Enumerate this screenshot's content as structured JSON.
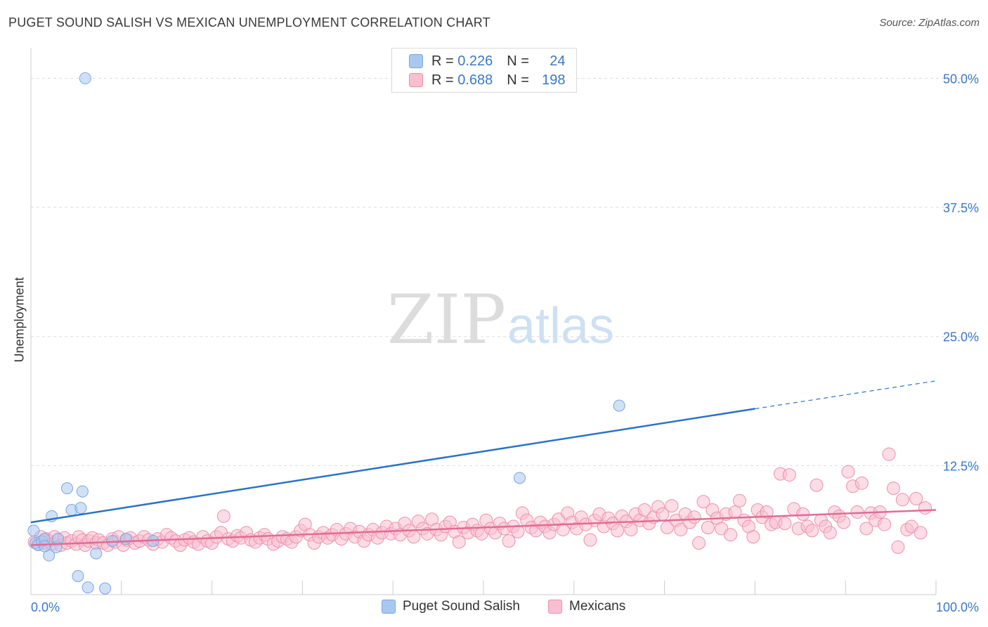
{
  "title": "PUGET SOUND SALISH VS MEXICAN UNEMPLOYMENT CORRELATION CHART",
  "source": "Source: ZipAtlas.com",
  "legend": [
    {
      "r_label": "R =",
      "r_value": "0.226",
      "n_label": "N =",
      "n_value": "24",
      "color": "#a9c8f0",
      "border": "#7aa7e0"
    },
    {
      "r_label": "R =",
      "r_value": "0.688",
      "n_label": "N =",
      "n_value": "198",
      "color": "#f9bfd0",
      "border": "#ec90ad"
    }
  ],
  "bottom_legend": [
    "Puget Sound Salish",
    "Mexicans"
  ],
  "watermark": {
    "zip": "ZIP",
    "atlas": "atlas"
  },
  "chart_data": {
    "type": "scatter",
    "title": "PUGET SOUND SALISH VS MEXICAN UNEMPLOYMENT CORRELATION CHART",
    "xlabel": "",
    "ylabel": "Unemployment",
    "xlim": [
      0,
      100
    ],
    "ylim": [
      0,
      52
    ],
    "x_tick_labels": [
      "0.0%",
      "100.0%"
    ],
    "y_ticks": [
      12.5,
      25.0,
      37.5,
      50.0
    ],
    "y_tick_labels": [
      "12.5%",
      "25.0%",
      "37.5%",
      "50.0%"
    ],
    "grid": true,
    "series": [
      {
        "name": "Puget Sound Salish",
        "color": "#7aa7e0",
        "fill": "#a9c8f0",
        "line_color": "#2b72c9",
        "trend": {
          "x0": 0,
          "y0": 7.0,
          "x1": 80,
          "y1": 18.0,
          "dash_to_x": 100,
          "dash_to_y": 20.7
        },
        "points": [
          [
            0.3,
            6.2
          ],
          [
            0.5,
            5.0
          ],
          [
            0.8,
            4.8
          ],
          [
            1.2,
            5.2
          ],
          [
            1.5,
            5.4
          ],
          [
            2.0,
            3.8
          ],
          [
            2.3,
            7.6
          ],
          [
            2.8,
            4.6
          ],
          [
            3.0,
            5.4
          ],
          [
            4.0,
            10.3
          ],
          [
            4.5,
            8.2
          ],
          [
            5.5,
            8.4
          ],
          [
            5.7,
            10.0
          ],
          [
            5.2,
            1.8
          ],
          [
            6.3,
            0.7
          ],
          [
            7.2,
            4.0
          ],
          [
            8.2,
            0.6
          ],
          [
            9.0,
            5.2
          ],
          [
            10.5,
            5.4
          ],
          [
            13.5,
            5.2
          ],
          [
            6.0,
            50.0
          ],
          [
            54.0,
            11.3
          ],
          [
            65.0,
            18.3
          ],
          [
            1.5,
            4.7
          ]
        ]
      },
      {
        "name": "Mexicans",
        "color": "#ec90ad",
        "fill": "#f9bfd0",
        "line_color": "#e06c96",
        "trend": {
          "x0": 0,
          "y0": 4.8,
          "x1": 100,
          "y1": 8.2
        },
        "points": [
          [
            0.4,
            5.1
          ],
          [
            0.8,
            4.9
          ],
          [
            1.1,
            5.6
          ],
          [
            1.4,
            5.0
          ],
          [
            1.7,
            5.4
          ],
          [
            2.0,
            5.2
          ],
          [
            2.3,
            4.9
          ],
          [
            2.6,
            5.6
          ],
          [
            3.0,
            5.3
          ],
          [
            3.3,
            4.8
          ],
          [
            3.7,
            5.5
          ],
          [
            4.0,
            5.0
          ],
          [
            4.5,
            5.2
          ],
          [
            5.0,
            4.9
          ],
          [
            5.3,
            5.6
          ],
          [
            5.7,
            5.3
          ],
          [
            6.0,
            4.8
          ],
          [
            6.4,
            5.2
          ],
          [
            6.8,
            5.5
          ],
          [
            7.2,
            5.0
          ],
          [
            7.5,
            5.3
          ],
          [
            8.0,
            5.0
          ],
          [
            8.5,
            4.8
          ],
          [
            9.0,
            5.4
          ],
          [
            9.3,
            5.1
          ],
          [
            9.7,
            5.6
          ],
          [
            10.2,
            4.8
          ],
          [
            10.6,
            5.3
          ],
          [
            11.0,
            5.5
          ],
          [
            11.5,
            5.0
          ],
          [
            12.0,
            5.2
          ],
          [
            12.5,
            5.6
          ],
          [
            13.0,
            5.3
          ],
          [
            13.5,
            4.9
          ],
          [
            14.0,
            5.4
          ],
          [
            14.5,
            5.1
          ],
          [
            15.0,
            5.8
          ],
          [
            15.5,
            5.5
          ],
          [
            16.0,
            5.2
          ],
          [
            16.5,
            4.8
          ],
          [
            17.0,
            5.3
          ],
          [
            17.5,
            5.5
          ],
          [
            18.0,
            5.1
          ],
          [
            18.5,
            4.9
          ],
          [
            19.0,
            5.6
          ],
          [
            19.5,
            5.2
          ],
          [
            20.0,
            5.0
          ],
          [
            20.5,
            5.6
          ],
          [
            21.0,
            6.0
          ],
          [
            21.3,
            7.6
          ],
          [
            21.8,
            5.4
          ],
          [
            22.3,
            5.2
          ],
          [
            22.8,
            5.7
          ],
          [
            23.2,
            5.5
          ],
          [
            23.8,
            6.0
          ],
          [
            24.3,
            5.3
          ],
          [
            24.8,
            5.1
          ],
          [
            25.3,
            5.5
          ],
          [
            25.8,
            5.8
          ],
          [
            26.2,
            5.4
          ],
          [
            26.8,
            4.9
          ],
          [
            27.3,
            5.2
          ],
          [
            27.8,
            5.6
          ],
          [
            28.3,
            5.4
          ],
          [
            28.8,
            5.1
          ],
          [
            29.3,
            5.6
          ],
          [
            29.8,
            6.2
          ],
          [
            30.3,
            6.8
          ],
          [
            30.8,
            5.8
          ],
          [
            31.3,
            5.0
          ],
          [
            31.8,
            5.6
          ],
          [
            32.3,
            6.0
          ],
          [
            32.8,
            5.5
          ],
          [
            33.3,
            5.8
          ],
          [
            33.8,
            6.3
          ],
          [
            34.3,
            5.4
          ],
          [
            34.8,
            5.9
          ],
          [
            35.3,
            6.4
          ],
          [
            35.8,
            5.6
          ],
          [
            36.3,
            6.1
          ],
          [
            36.8,
            5.2
          ],
          [
            37.3,
            5.8
          ],
          [
            37.8,
            6.3
          ],
          [
            38.3,
            5.5
          ],
          [
            38.8,
            6.0
          ],
          [
            39.3,
            6.6
          ],
          [
            39.8,
            5.9
          ],
          [
            40.3,
            6.4
          ],
          [
            40.8,
            5.8
          ],
          [
            41.3,
            6.9
          ],
          [
            41.8,
            6.2
          ],
          [
            42.3,
            5.6
          ],
          [
            42.8,
            7.1
          ],
          [
            43.3,
            6.4
          ],
          [
            43.8,
            5.9
          ],
          [
            44.3,
            7.3
          ],
          [
            44.8,
            6.3
          ],
          [
            45.3,
            5.8
          ],
          [
            45.8,
            6.6
          ],
          [
            46.3,
            7.0
          ],
          [
            46.8,
            6.1
          ],
          [
            47.3,
            5.1
          ],
          [
            47.8,
            6.5
          ],
          [
            48.3,
            6.0
          ],
          [
            48.8,
            6.8
          ],
          [
            49.3,
            6.2
          ],
          [
            49.8,
            5.9
          ],
          [
            50.3,
            7.2
          ],
          [
            50.8,
            6.4
          ],
          [
            51.3,
            6.0
          ],
          [
            51.8,
            6.9
          ],
          [
            52.3,
            6.4
          ],
          [
            52.8,
            5.2
          ],
          [
            53.3,
            6.6
          ],
          [
            53.8,
            6.1
          ],
          [
            54.3,
            7.9
          ],
          [
            54.8,
            7.2
          ],
          [
            55.3,
            6.5
          ],
          [
            55.8,
            6.2
          ],
          [
            56.3,
            7.0
          ],
          [
            56.8,
            6.6
          ],
          [
            57.3,
            6.0
          ],
          [
            57.8,
            6.8
          ],
          [
            58.3,
            7.3
          ],
          [
            58.8,
            6.3
          ],
          [
            59.3,
            7.9
          ],
          [
            59.8,
            7.0
          ],
          [
            60.3,
            6.4
          ],
          [
            60.8,
            7.5
          ],
          [
            61.3,
            6.8
          ],
          [
            61.8,
            5.3
          ],
          [
            62.3,
            7.2
          ],
          [
            62.8,
            7.8
          ],
          [
            63.3,
            6.6
          ],
          [
            63.8,
            7.4
          ],
          [
            64.3,
            6.9
          ],
          [
            64.8,
            6.2
          ],
          [
            65.3,
            7.6
          ],
          [
            65.8,
            7.1
          ],
          [
            66.3,
            6.3
          ],
          [
            66.8,
            7.8
          ],
          [
            67.3,
            7.2
          ],
          [
            67.8,
            8.2
          ],
          [
            68.3,
            6.9
          ],
          [
            68.8,
            7.5
          ],
          [
            69.3,
            8.5
          ],
          [
            69.8,
            7.8
          ],
          [
            70.3,
            6.5
          ],
          [
            70.8,
            8.6
          ],
          [
            71.3,
            7.2
          ],
          [
            71.8,
            6.3
          ],
          [
            72.3,
            7.8
          ],
          [
            72.8,
            7.0
          ],
          [
            73.3,
            7.5
          ],
          [
            73.8,
            5.0
          ],
          [
            74.3,
            9.0
          ],
          [
            74.8,
            6.5
          ],
          [
            75.3,
            8.2
          ],
          [
            75.8,
            7.4
          ],
          [
            76.3,
            6.4
          ],
          [
            76.8,
            7.8
          ],
          [
            77.3,
            5.8
          ],
          [
            77.8,
            8.0
          ],
          [
            78.3,
            9.1
          ],
          [
            78.8,
            7.2
          ],
          [
            79.3,
            6.6
          ],
          [
            79.8,
            5.6
          ],
          [
            80.3,
            8.2
          ],
          [
            80.8,
            7.5
          ],
          [
            81.3,
            8.0
          ],
          [
            81.8,
            6.8
          ],
          [
            82.3,
            7.0
          ],
          [
            82.8,
            11.7
          ],
          [
            83.3,
            6.9
          ],
          [
            83.8,
            11.6
          ],
          [
            84.3,
            8.3
          ],
          [
            84.8,
            6.4
          ],
          [
            85.3,
            7.8
          ],
          [
            85.8,
            6.6
          ],
          [
            86.3,
            6.2
          ],
          [
            86.8,
            10.6
          ],
          [
            87.3,
            7.2
          ],
          [
            87.8,
            6.6
          ],
          [
            88.3,
            6.0
          ],
          [
            88.8,
            8.0
          ],
          [
            89.3,
            7.6
          ],
          [
            89.8,
            7.0
          ],
          [
            90.3,
            11.9
          ],
          [
            90.8,
            10.5
          ],
          [
            91.3,
            8.0
          ],
          [
            91.8,
            10.8
          ],
          [
            92.3,
            6.4
          ],
          [
            92.8,
            7.9
          ],
          [
            93.3,
            7.2
          ],
          [
            93.8,
            8.0
          ],
          [
            94.3,
            6.8
          ],
          [
            94.8,
            13.6
          ],
          [
            95.3,
            10.3
          ],
          [
            95.8,
            4.6
          ],
          [
            96.3,
            9.2
          ],
          [
            96.8,
            6.3
          ],
          [
            97.3,
            6.6
          ],
          [
            97.8,
            9.3
          ],
          [
            98.3,
            6.0
          ],
          [
            98.8,
            8.4
          ]
        ]
      }
    ]
  }
}
